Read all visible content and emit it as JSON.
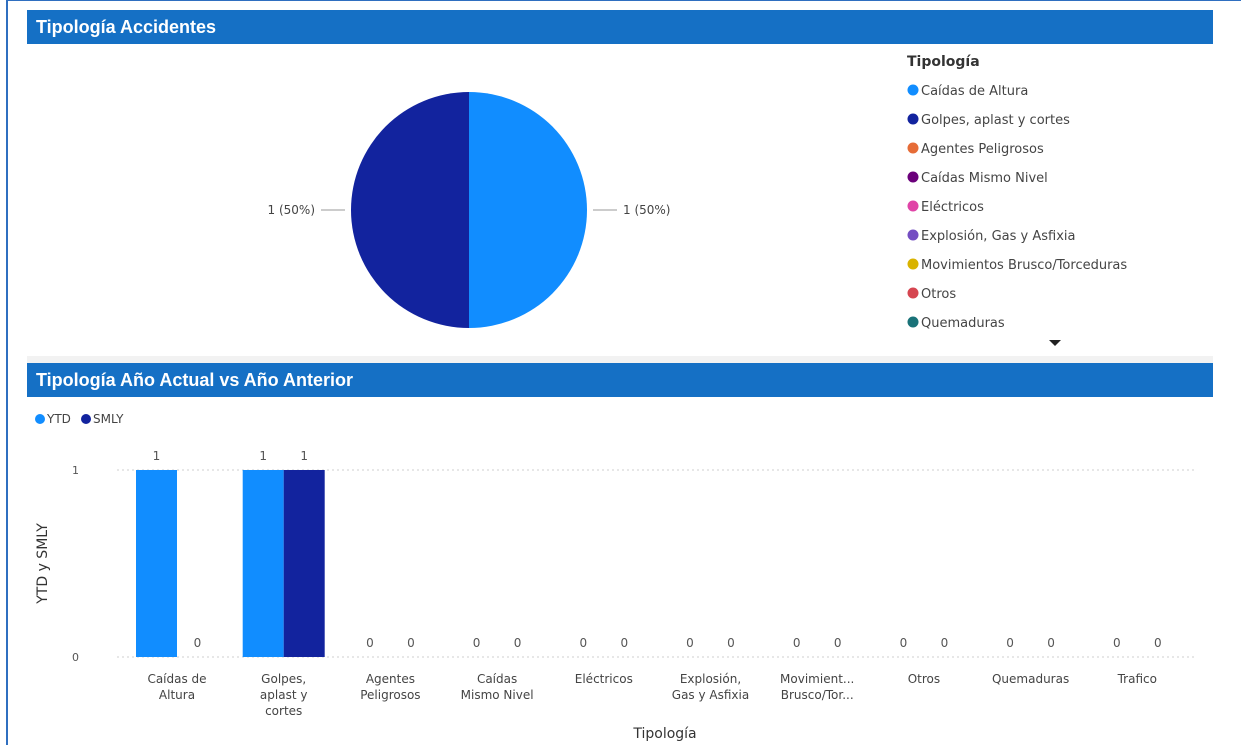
{
  "pie_panel": {
    "title": "Tipología Accidentes"
  },
  "bar_panel": {
    "title": "Tipología Año Actual vs Año Anterior"
  },
  "colors": {
    "header": "#1570c5",
    "ytd": "#118dff",
    "smly": "#12239e"
  },
  "chart_data": [
    {
      "type": "pie",
      "title": "Tipología Accidentes",
      "legend_title": "Tipología",
      "legend_position": "right",
      "slices": [
        {
          "label": "Caídas de Altura",
          "value": 1,
          "data_label": "1 (50%)"
        },
        {
          "label": "Golpes, aplast y cortes",
          "value": 1,
          "data_label": "1 (50%)"
        }
      ],
      "legend": [
        {
          "label": "Caídas de Altura",
          "color": "#118dff"
        },
        {
          "label": "Golpes, aplast y cortes",
          "color": "#12239e"
        },
        {
          "label": "Agentes Peligrosos",
          "color": "#e66c37"
        },
        {
          "label": "Caídas Mismo Nivel",
          "color": "#6b007b"
        },
        {
          "label": "Eléctricos",
          "color": "#e044a7"
        },
        {
          "label": "Explosión, Gas y Asfixia",
          "color": "#744ec2"
        },
        {
          "label": "Movimientos Brusco/Torceduras",
          "color": "#d9b300"
        },
        {
          "label": "Otros",
          "color": "#d64550"
        },
        {
          "label": "Quemaduras",
          "color": "#197278"
        }
      ]
    },
    {
      "type": "bar",
      "title": "Tipología Año Actual vs Año Anterior",
      "xlabel": "Tipología",
      "ylabel": "YTD y SMLY",
      "ylim": [
        0,
        1
      ],
      "yticks": [
        "0",
        "1"
      ],
      "grid": true,
      "legend_position": "top-left",
      "categories": [
        [
          "Caídas de",
          "Altura"
        ],
        [
          "Golpes,",
          "aplast y",
          "cortes"
        ],
        [
          "Agentes",
          "Peligrosos"
        ],
        [
          "Caídas",
          "Mismo Nivel"
        ],
        [
          "Eléctricos"
        ],
        [
          "Explosión,",
          "Gas y Asfixia"
        ],
        [
          "Movimient...",
          "Brusco/Tor..."
        ],
        [
          "Otros"
        ],
        [
          "Quemaduras"
        ],
        [
          "Trafico"
        ]
      ],
      "series": [
        {
          "name": "YTD",
          "color": "#118dff",
          "values": [
            1,
            1,
            0,
            0,
            0,
            0,
            0,
            0,
            0,
            0
          ],
          "labels": [
            "1",
            "1",
            "0",
            "0",
            "0",
            "0",
            "0",
            "0",
            "0",
            "0"
          ]
        },
        {
          "name": "SMLY",
          "color": "#12239e",
          "values": [
            0,
            1,
            0,
            0,
            0,
            0,
            0,
            0,
            0,
            0
          ],
          "labels": [
            "0",
            "1",
            "0",
            "0",
            "0",
            "0",
            "0",
            "0",
            "0",
            "0"
          ]
        }
      ]
    }
  ]
}
